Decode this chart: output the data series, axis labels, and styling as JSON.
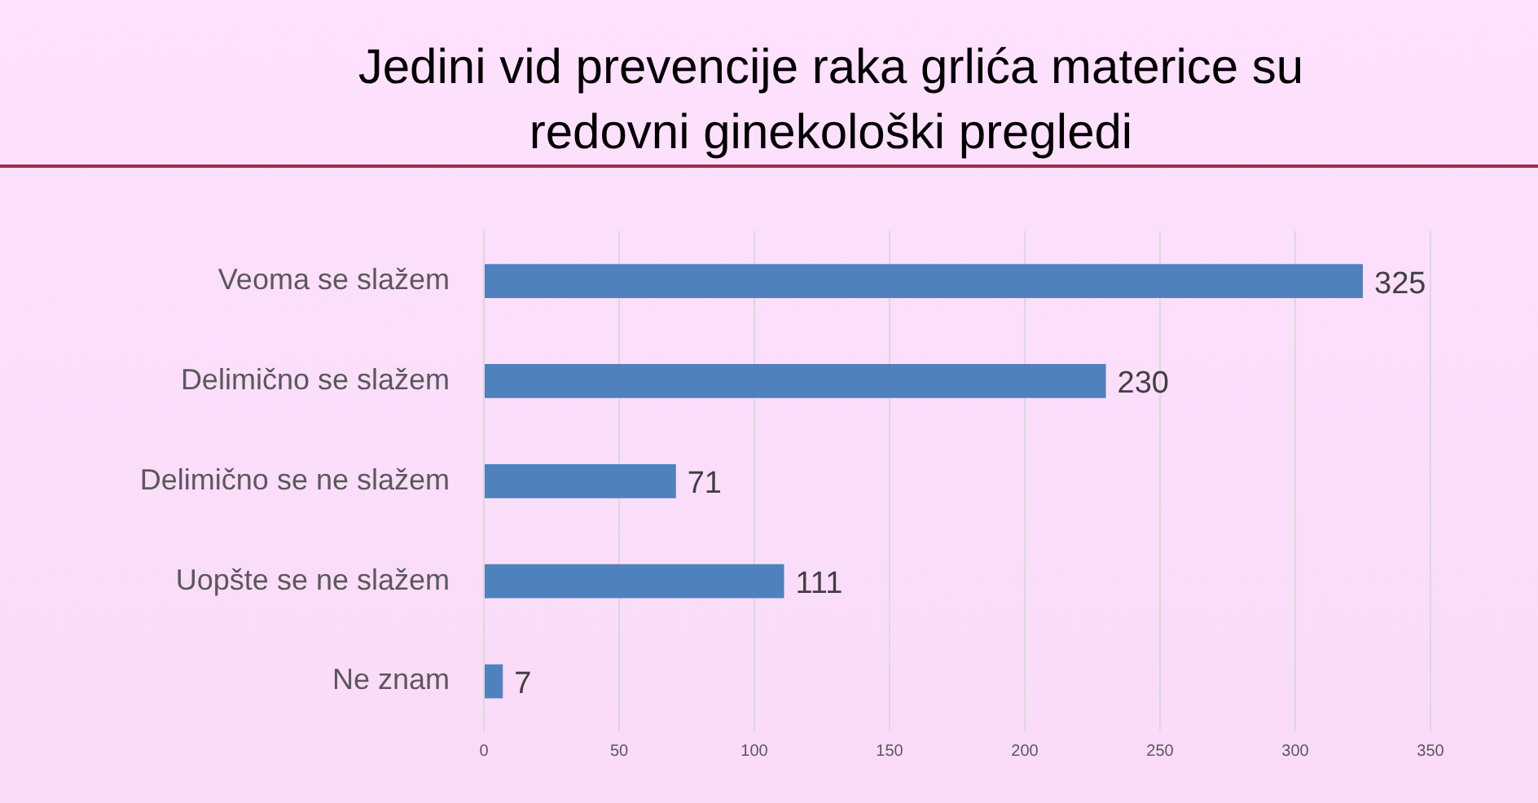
{
  "chart_data": {
    "type": "bar",
    "title": "Jedini vid prevencije raka grlića materice su redovni ginekološki pregledi",
    "orientation": "horizontal",
    "categories": [
      "Veoma se slažem",
      "Delimično se slažem",
      "Delimično se ne slažem",
      "Uopšte se ne slažem",
      "Ne znam"
    ],
    "values": [
      325,
      230,
      71,
      111,
      7
    ],
    "color": "#4f81bd",
    "xlim": [
      0,
      350
    ],
    "xticks": [
      0,
      50,
      100,
      150,
      200,
      250,
      300,
      350
    ],
    "grid": "x",
    "data_labels": true
  }
}
